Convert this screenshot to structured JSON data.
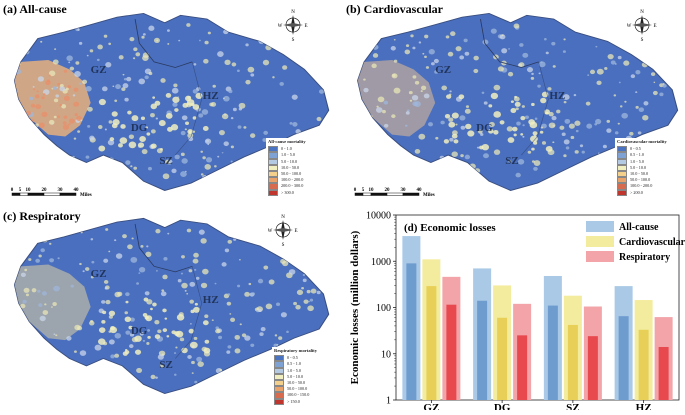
{
  "panels": [
    {
      "title": "(a) All-cause",
      "legend_title": "All-cause mortality",
      "legend": [
        {
          "label": "0 - 1.0",
          "color": "#4a74c2"
        },
        {
          "label": "1.0 - 5.0",
          "color": "#7fa2d4"
        },
        {
          "label": "5.0 - 10.0",
          "color": "#b4c9e2"
        },
        {
          "label": "10.0 - 50.0",
          "color": "#f1efc0"
        },
        {
          "label": "50.0 - 100.0",
          "color": "#f3d08c"
        },
        {
          "label": "100.0 - 200.0",
          "color": "#e9a36a"
        },
        {
          "label": "200.0 - 300.0",
          "color": "#d86a4e"
        },
        {
          "label": "> 300.0",
          "color": "#c0362f"
        }
      ],
      "regions": [
        "GZ",
        "HZ",
        "DG",
        "SZ"
      ],
      "scale_labels": [
        "0",
        "5",
        "10",
        "20",
        "30",
        "40"
      ],
      "scale_unit": "Miles"
    },
    {
      "title": "(b) Cardiovascular",
      "legend_title": "Cardiovascular mortality",
      "legend": [
        {
          "label": "0 - 0.5",
          "color": "#4a74c2"
        },
        {
          "label": "0.5 - 1.0",
          "color": "#7fa2d4"
        },
        {
          "label": "1.0 - 5.0",
          "color": "#b4c9e2"
        },
        {
          "label": "5.0 - 10.0",
          "color": "#f1efc0"
        },
        {
          "label": "10.0 - 50.0",
          "color": "#f3d08c"
        },
        {
          "label": "50.0 - 100.0",
          "color": "#e9a36a"
        },
        {
          "label": "100.0 - 200.0",
          "color": "#d86a4e"
        },
        {
          "label": "> 200.0",
          "color": "#c0362f"
        }
      ],
      "regions": [
        "GZ",
        "HZ",
        "DG",
        "SZ"
      ],
      "scale_labels": [
        "0",
        "5",
        "10",
        "20",
        "30",
        "40"
      ],
      "scale_unit": "Miles"
    },
    {
      "title": "(c) Respiratory",
      "legend_title": "Respiratory mortality",
      "legend": [
        {
          "label": "0 - 0.5",
          "color": "#4a74c2"
        },
        {
          "label": "0.5 - 1.0",
          "color": "#7fa2d4"
        },
        {
          "label": "1.0 - 5.0",
          "color": "#b4c9e2"
        },
        {
          "label": "5.0 - 10.0",
          "color": "#f1efc0"
        },
        {
          "label": "10.0 - 50.0",
          "color": "#f3d08c"
        },
        {
          "label": "50.0 - 100.0",
          "color": "#e9a36a"
        },
        {
          "label": "100.0 - 150.0",
          "color": "#d86a4e"
        },
        {
          "label": "> 150.0",
          "color": "#c0362f"
        }
      ],
      "regions": [
        "GZ",
        "HZ",
        "DG",
        "SZ"
      ],
      "scale_labels": [
        "0",
        "5",
        "10",
        "20",
        "30",
        "40"
      ],
      "scale_unit": "Miles"
    }
  ],
  "compass": {
    "n": "N",
    "s": "S",
    "e": "E",
    "w": "W"
  },
  "chart_data": {
    "type": "bar",
    "title": "(d) Economic losses",
    "ylabel": "Economic losses (million dollars)",
    "yscale": "log",
    "ylim": [
      1,
      10000
    ],
    "yticks": [
      "1",
      "10",
      "100",
      "1000",
      "10000"
    ],
    "categories": [
      "GZ",
      "DG",
      "SZ",
      "HZ"
    ],
    "series": [
      {
        "name": "All-cause",
        "color_light": "#a9c9e6",
        "color_dark": "#6f9ccf",
        "upper": [
          3500,
          700,
          480,
          290
        ],
        "lower": [
          900,
          140,
          110,
          65
        ]
      },
      {
        "name": "Cardiovascular",
        "color_light": "#f3ec9e",
        "color_dark": "#e8cf57",
        "upper": [
          1100,
          300,
          180,
          145
        ],
        "lower": [
          290,
          60,
          42,
          33
        ]
      },
      {
        "name": "Respiratory",
        "color_light": "#f2a4a8",
        "color_dark": "#e8494f",
        "upper": [
          460,
          120,
          105,
          62
        ],
        "lower": [
          115,
          25,
          24,
          14
        ]
      }
    ],
    "legend_position": "top-right"
  }
}
